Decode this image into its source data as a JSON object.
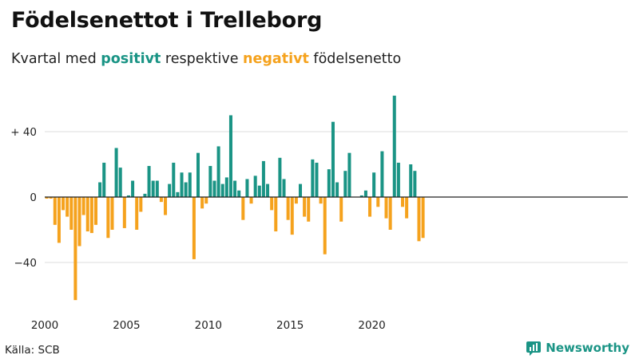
{
  "title": "Födelsenettot i Trelleborg",
  "subtitle": {
    "prefix": "Kvartal med ",
    "positive_word": "positivt",
    "middle": " respektive ",
    "negative_word": "negativt",
    "suffix": " födelsenetto"
  },
  "source": "Källa: SCB",
  "brand": "Newsworthy",
  "colors": {
    "positive": "#1a9485",
    "negative": "#f5a21d",
    "grid": "#dedede",
    "zero_line": "#222222"
  },
  "chart_data": {
    "type": "bar",
    "title": "Födelsenettot i Trelleborg",
    "xlabel": "",
    "ylabel": "",
    "ylim": [
      -64,
      64
    ],
    "yticks": [
      40,
      0,
      -40
    ],
    "ytick_labels": [
      "+ 40",
      "0",
      "−40"
    ],
    "xticks": [
      "2000",
      "2005",
      "2010",
      "2015",
      "2020"
    ],
    "grid": true,
    "start": "2000 Q1",
    "frequency": "quarterly",
    "values": [
      -1,
      -1,
      -17,
      -28,
      -8,
      -12,
      -20,
      -63,
      -30,
      -11,
      -21,
      -22,
      -17,
      9,
      21,
      -25,
      -20,
      30,
      18,
      -19,
      1,
      10,
      -20,
      -9,
      2,
      19,
      10,
      10,
      -3,
      -11,
      8,
      21,
      3,
      15,
      9,
      15,
      -38,
      27,
      -7,
      -4,
      19,
      10,
      31,
      8,
      12,
      50,
      10,
      4,
      -14,
      11,
      -4,
      13,
      7,
      22,
      8,
      -8,
      -21,
      24,
      11,
      -14,
      -23,
      -4,
      8,
      -12,
      -15,
      23,
      21,
      -4,
      -35,
      17,
      46,
      9,
      -15,
      16,
      27,
      0,
      0,
      1,
      4,
      -12,
      15,
      -6,
      28,
      -13,
      -20,
      62,
      21,
      -6,
      -13,
      20,
      16,
      -27,
      -25
    ]
  }
}
